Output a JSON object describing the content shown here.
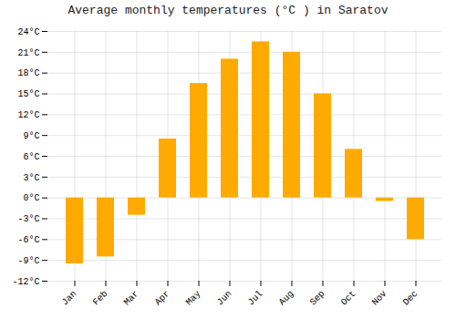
{
  "chart_data": {
    "type": "bar",
    "title": "Average monthly temperatures (°C ) in Saratov",
    "categories": [
      "Jan",
      "Feb",
      "Mar",
      "Apr",
      "May",
      "Jun",
      "Jul",
      "Aug",
      "Sep",
      "Oct",
      "Nov",
      "Dec"
    ],
    "values": [
      -9.5,
      -8.5,
      -2.5,
      8.5,
      16.5,
      20.0,
      22.5,
      21.0,
      15.0,
      7.0,
      -0.5,
      -6.0
    ],
    "color": "#FFAA00",
    "ylim": [
      -12,
      24
    ],
    "yticks": [
      {
        "value": -12,
        "label": "-12°C"
      },
      {
        "value": -9,
        "label": "-9°C"
      },
      {
        "value": -6,
        "label": "-6°C"
      },
      {
        "value": -3,
        "label": "-3°C"
      },
      {
        "value": 0,
        "label": "0°C"
      },
      {
        "value": 3,
        "label": "3°C"
      },
      {
        "value": 6,
        "label": "6°C"
      },
      {
        "value": 9,
        "label": "9°C"
      },
      {
        "value": 12,
        "label": "12°C"
      },
      {
        "value": 15,
        "label": "15°C"
      },
      {
        "value": 18,
        "label": "18°C"
      },
      {
        "value": 21,
        "label": "21°C"
      },
      {
        "value": 24,
        "label": "24°C"
      }
    ],
    "grid": true
  }
}
